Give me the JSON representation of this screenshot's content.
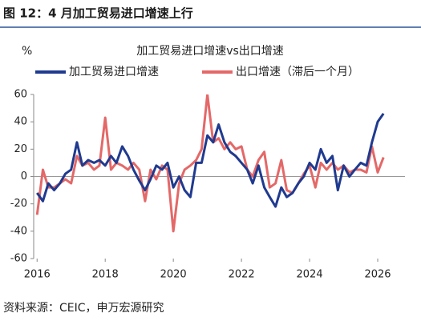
{
  "header": {
    "title": "图 12：4 月加工贸易进口增速上行"
  },
  "chart_data": {
    "type": "line",
    "title": "加工贸易进口增速vs出口增速",
    "y_label": "%",
    "x": [
      2016,
      2016.17,
      2016.33,
      2016.5,
      2016.67,
      2016.83,
      2017,
      2017.17,
      2017.33,
      2017.5,
      2017.67,
      2017.83,
      2018,
      2018.17,
      2018.33,
      2018.5,
      2018.67,
      2018.83,
      2019,
      2019.17,
      2019.33,
      2019.5,
      2019.67,
      2019.83,
      2020,
      2020.17,
      2020.33,
      2020.5,
      2020.67,
      2020.83,
      2021,
      2021.17,
      2021.33,
      2021.5,
      2021.67,
      2021.83,
      2022,
      2022.17,
      2022.33,
      2022.5,
      2022.67,
      2022.83,
      2023,
      2023.17,
      2023.33,
      2023.5,
      2023.67,
      2023.83,
      2024,
      2024.17,
      2024.33,
      2024.5,
      2024.67,
      2024.83,
      2025,
      2025.17,
      2025.33,
      2025.5,
      2025.67,
      2025.83,
      2026,
      2026.17
    ],
    "series": [
      {
        "name": "加工贸易进口增速",
        "color": "#1f3a8f",
        "values": [
          -12,
          -18,
          -5,
          -10,
          -5,
          2,
          5,
          25,
          8,
          12,
          10,
          12,
          8,
          15,
          10,
          22,
          15,
          5,
          -3,
          -10,
          -2,
          8,
          5,
          10,
          -8,
          0,
          -10,
          -15,
          10,
          10,
          30,
          25,
          38,
          25,
          18,
          15,
          10,
          5,
          -5,
          8,
          -8,
          -15,
          -22,
          -8,
          -15,
          -12,
          -5,
          0,
          10,
          5,
          20,
          10,
          15,
          -10,
          8,
          0,
          5,
          10,
          8,
          25,
          40,
          46
        ]
      },
      {
        "name": "出口增速（滞后一个月）",
        "color": "#e46868",
        "values": [
          -28,
          5,
          -8,
          -8,
          -5,
          -2,
          -5,
          15,
          8,
          10,
          5,
          8,
          43,
          5,
          10,
          8,
          5,
          10,
          5,
          -18,
          5,
          -2,
          8,
          5,
          -40,
          -5,
          5,
          8,
          12,
          20,
          60,
          25,
          28,
          20,
          25,
          20,
          22,
          5,
          0,
          12,
          18,
          -8,
          -5,
          12,
          -10,
          -12,
          -5,
          2,
          8,
          -8,
          10,
          5,
          10,
          5,
          8,
          3,
          5,
          5,
          3,
          22,
          3,
          14
        ]
      }
    ],
    "xlim": [
      2015.9,
      2026.8
    ],
    "xticks": [
      2016,
      2018,
      2020,
      2022,
      2024,
      2026
    ],
    "ylim": [
      -60,
      60
    ],
    "yticks": [
      -60,
      -40,
      -20,
      0,
      20,
      40,
      60
    ]
  },
  "footer": {
    "source": "资料来源：CEIC，申万宏源研究"
  }
}
